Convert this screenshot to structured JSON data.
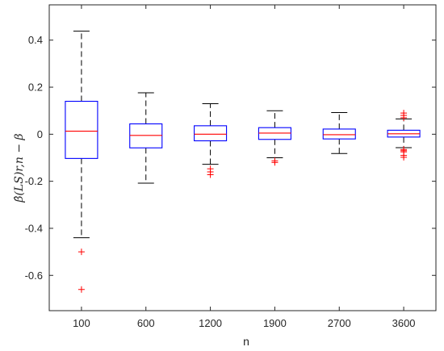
{
  "chart_data": {
    "type": "box",
    "xlabel": "n",
    "ylabel": "β̂(LS)r,n − β",
    "ylim": [
      -0.75,
      0.55
    ],
    "yticks": [
      -0.6,
      -0.4,
      -0.2,
      0,
      0.2,
      0.4
    ],
    "ytick_labels": [
      "-0.6",
      "-0.4",
      "-0.2",
      "0",
      "0.2",
      "0.4"
    ],
    "categories": [
      "100",
      "600",
      "1200",
      "1900",
      "2700",
      "3600"
    ],
    "boxes": [
      {
        "category": "100",
        "whisker_low": -0.44,
        "q1": -0.103,
        "median": 0.013,
        "q3": 0.14,
        "whisker_high": 0.438,
        "outliers": [
          -0.5,
          -0.66
        ]
      },
      {
        "category": "600",
        "whisker_low": -0.208,
        "q1": -0.058,
        "median": -0.005,
        "q3": 0.044,
        "whisker_high": 0.176,
        "outliers": []
      },
      {
        "category": "1200",
        "whisker_low": -0.128,
        "q1": -0.028,
        "median": 0.0,
        "q3": 0.036,
        "whisker_high": 0.13,
        "outliers": [
          -0.147,
          -0.16,
          -0.172
        ]
      },
      {
        "category": "1900",
        "whisker_low": -0.1,
        "q1": -0.022,
        "median": 0.005,
        "q3": 0.028,
        "whisker_high": 0.1,
        "outliers": [
          -0.113,
          -0.12
        ]
      },
      {
        "category": "2700",
        "whisker_low": -0.082,
        "q1": -0.02,
        "median": -0.002,
        "q3": 0.022,
        "whisker_high": 0.092,
        "outliers": []
      },
      {
        "category": "3600",
        "whisker_low": -0.057,
        "q1": -0.012,
        "median": 0.002,
        "q3": 0.017,
        "whisker_high": 0.065,
        "outliers": [
          0.09,
          0.08,
          0.07,
          -0.065,
          -0.07,
          -0.075,
          -0.09,
          -0.098
        ]
      }
    ],
    "colors": {
      "box": "#0000ff",
      "median": "#ff0000",
      "whisker": "#000000",
      "outlier": "#ff0000",
      "axis": "#262626"
    },
    "grid": false,
    "legend": "none"
  }
}
